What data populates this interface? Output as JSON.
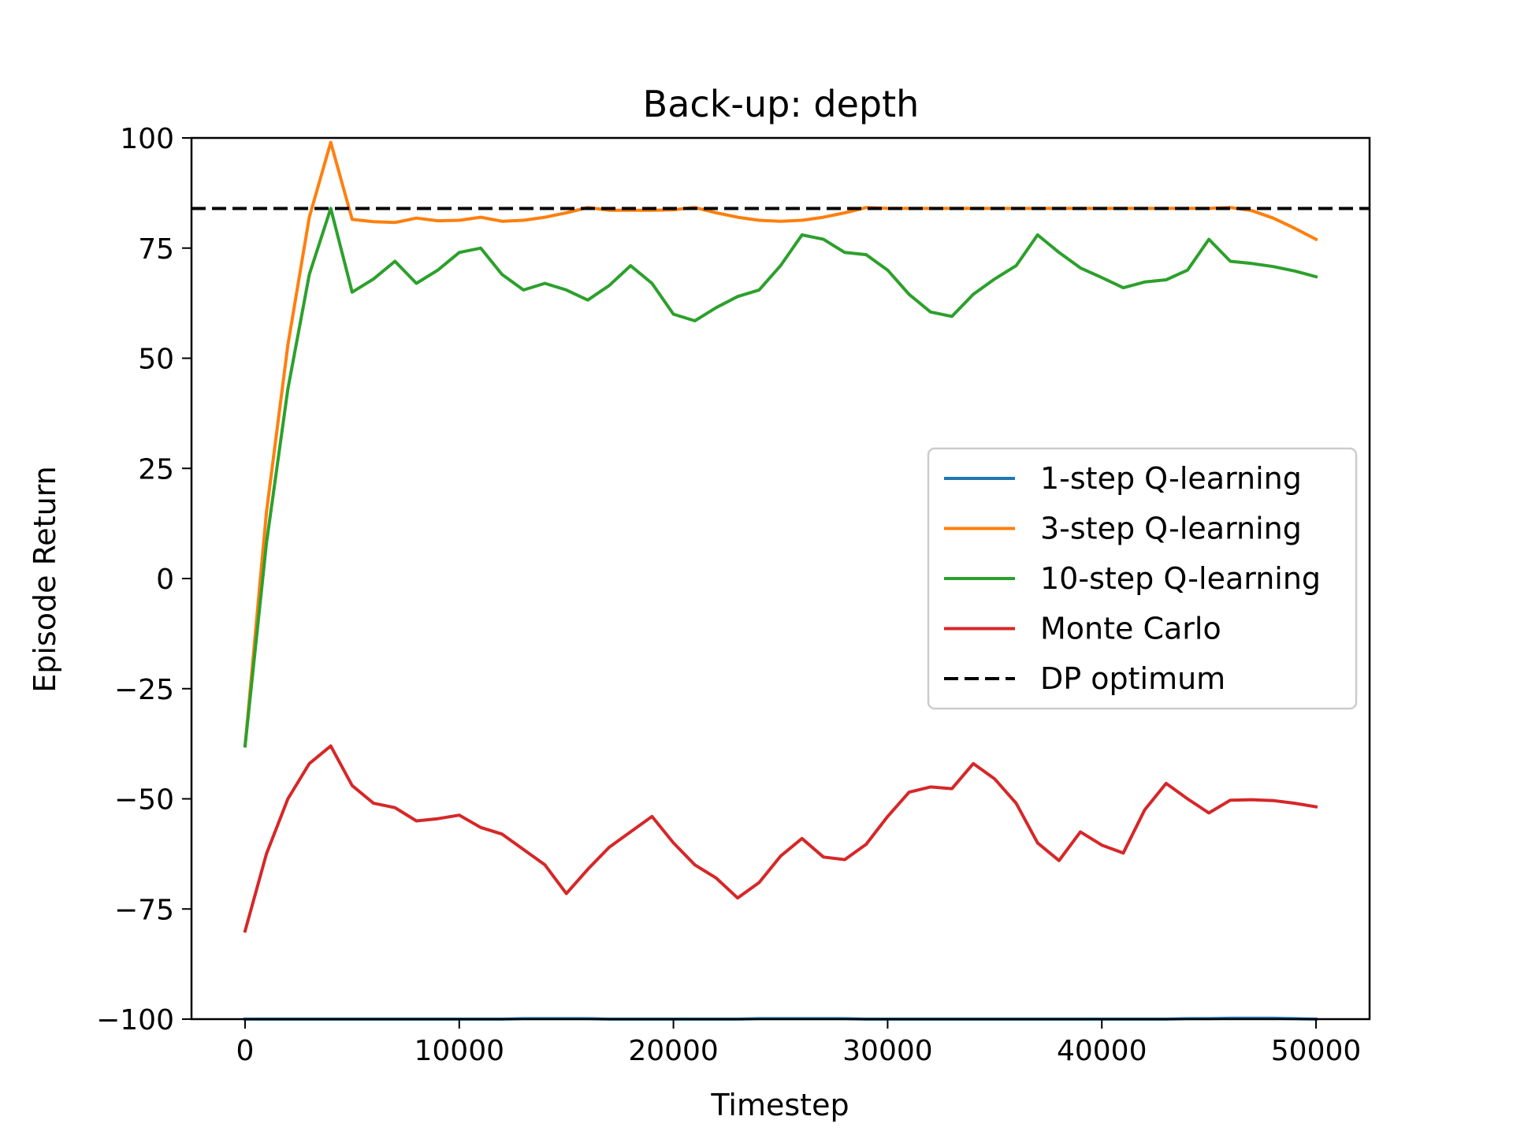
{
  "chart_data": {
    "type": "line",
    "title": "Back-up: depth",
    "xlabel": "Timestep",
    "ylabel": "Episode Return",
    "xlim": [
      -2500,
      52500
    ],
    "ylim": [
      -100,
      100
    ],
    "xticks": [
      0,
      10000,
      20000,
      30000,
      40000,
      50000
    ],
    "yticks": [
      -100,
      -75,
      -50,
      -25,
      0,
      25,
      50,
      75,
      100
    ],
    "xtick_labels": [
      "0",
      "10000",
      "20000",
      "30000",
      "40000",
      "50000"
    ],
    "ytick_labels": [
      "−100",
      "−75",
      "−50",
      "−25",
      "0",
      "25",
      "50",
      "75",
      "100"
    ],
    "grid": false,
    "legend_position": "center-right",
    "x": [
      0,
      1000,
      2000,
      3000,
      4000,
      5000,
      6000,
      7000,
      8000,
      9000,
      10000,
      11000,
      12000,
      13000,
      14000,
      15000,
      16000,
      17000,
      18000,
      19000,
      20000,
      21000,
      22000,
      23000,
      24000,
      25000,
      26000,
      27000,
      28000,
      29000,
      30000,
      31000,
      32000,
      33000,
      34000,
      35000,
      36000,
      37000,
      38000,
      39000,
      40000,
      41000,
      42000,
      43000,
      44000,
      45000,
      46000,
      47000,
      48000,
      49000,
      50000
    ],
    "series": [
      {
        "name": "1-step Q-learning",
        "color": "#1f77b4",
        "style": "solid",
        "values": [
          -100,
          -100,
          -100,
          -100,
          -100,
          -100,
          -100,
          -100,
          -100,
          -100,
          -100,
          -100,
          -100,
          -99.9,
          -99.9,
          -99.9,
          -99.9,
          -100,
          -100,
          -100,
          -100,
          -100,
          -100,
          -100,
          -99.9,
          -99.9,
          -99.9,
          -99.9,
          -99.9,
          -100,
          -100,
          -100,
          -100,
          -100,
          -100,
          -100,
          -100,
          -100,
          -100,
          -100,
          -100,
          -100,
          -100,
          -100,
          -99.9,
          -99.9,
          -99.8,
          -99.8,
          -99.8,
          -99.9,
          -100
        ]
      },
      {
        "name": "3-step Q-learning",
        "color": "#ff7f0e",
        "style": "solid",
        "values": [
          -38,
          15,
          53,
          82,
          99,
          81.5,
          81,
          80.8,
          81.8,
          81.2,
          81.3,
          82,
          81.1,
          81.3,
          82,
          83,
          84.2,
          83.6,
          83.6,
          83.6,
          83.7,
          84.2,
          83,
          82,
          81.3,
          81.1,
          81.3,
          82,
          83,
          84.2,
          84,
          84,
          84,
          84,
          84,
          84,
          84,
          84,
          84,
          84,
          84,
          84,
          84,
          84,
          84,
          84,
          84.2,
          83.5,
          81.8,
          79.5,
          77
        ]
      },
      {
        "name": "10-step Q-learning",
        "color": "#2ca02c",
        "style": "solid",
        "values": [
          -38,
          8,
          43,
          69,
          84,
          65,
          68,
          72,
          67,
          70,
          74,
          75,
          69,
          65.5,
          67,
          65.5,
          63.2,
          66.5,
          71,
          67,
          60,
          58.5,
          61.5,
          64,
          65.5,
          71,
          78,
          77,
          74,
          73.5,
          70,
          64.5,
          60.5,
          59.5,
          64.5,
          68,
          71,
          78,
          74,
          70.5,
          68.3,
          66,
          67.3,
          67.8,
          70,
          77,
          72,
          71.5,
          70.8,
          69.8,
          68.5
        ]
      },
      {
        "name": "Monte Carlo",
        "color": "#d62728",
        "style": "solid",
        "values": [
          -80,
          -62.5,
          -50,
          -42,
          -38,
          -47,
          -51,
          -52,
          -55,
          -54.5,
          -53.7,
          -56.5,
          -58,
          -61.5,
          -65,
          -71.5,
          -66,
          -61,
          -57.5,
          -54,
          -60,
          -65,
          -68,
          -72.5,
          -69,
          -63,
          -59,
          -63.2,
          -63.8,
          -60.3,
          -54,
          -48.5,
          -47.3,
          -47.7,
          -42,
          -45.5,
          -51,
          -60,
          -64,
          -57.5,
          -60.5,
          -62.3,
          -52.5,
          -46.5,
          -50,
          -53.2,
          -50.3,
          -50.2,
          -50.4,
          -51,
          -51.8
        ]
      },
      {
        "name": "DP optimum",
        "color": "#000000",
        "style": "dashed",
        "constant": 84
      }
    ]
  }
}
